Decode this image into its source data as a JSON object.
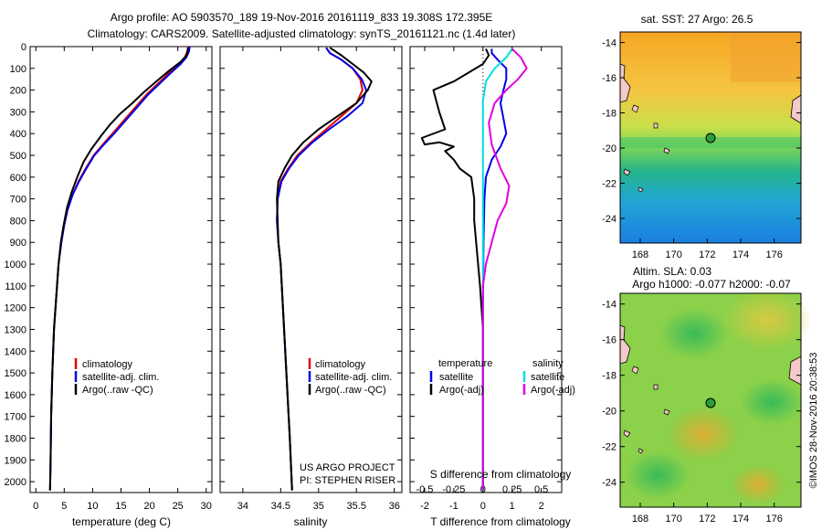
{
  "title_line1": "Argo profile: AO 5903570_189 19-Nov-2016 20161119_833 19.308S 172.395E",
  "title_line2": "Climatology: CARS2009. Satellite-adjusted climatology: synTS_20161121.nc (1.4d later)",
  "credit": "©IMOS 28-Nov-2016 20:38:53",
  "project_line1": "US ARGO PROJECT",
  "project_line2": "PI: STEPHEN RISER",
  "colors": {
    "climatology": "#e00000",
    "satellite": "#0000e6",
    "argo": "#000000",
    "sat_salinity": "#00e0e0",
    "argo_salinity": "#e000e0"
  },
  "depth_axis": {
    "ylim": [
      0,
      2050
    ],
    "ticks": [
      "0",
      "100",
      "200",
      "300",
      "400",
      "500",
      "600",
      "700",
      "800",
      "900",
      "1000",
      "1100",
      "1200",
      "1300",
      "1400",
      "1500",
      "1600",
      "1700",
      "1800",
      "1900",
      "2000"
    ]
  },
  "legend_profile": [
    "climatology",
    "satellite-adj. clim.",
    "Argo(..raw -QC)"
  ],
  "legend_diff": {
    "temp_header": "temperature",
    "sal_header": "salinity",
    "sat_label": "satellite",
    "argo_label": "Argo(-adj)"
  },
  "sst_map": {
    "title": "sat. SST: 27 Argo: 26.5",
    "xticks": [
      "168",
      "170",
      "172",
      "174",
      "176"
    ],
    "yticks": [
      "-14",
      "-16",
      "-18",
      "-20",
      "-22",
      "-24"
    ]
  },
  "sla_map": {
    "title1": "Altim. SLA: 0.03",
    "title2": "Argo h1000: -0.077 h2000: -0.07",
    "xticks": [
      "168",
      "170",
      "172",
      "174",
      "176"
    ],
    "yticks": [
      "-14",
      "-16",
      "-18",
      "-20",
      "-22",
      "-24"
    ]
  },
  "chart_data": [
    {
      "type": "line",
      "xlabel": "temperature (deg C)",
      "xlim": [
        -1,
        31
      ],
      "xticks": [
        "0",
        "5",
        "10",
        "15",
        "20",
        "25",
        "30"
      ],
      "ylabel": "",
      "ylim": [
        2050,
        0
      ],
      "series": [
        {
          "name": "climatology",
          "color_key": "climatology",
          "points": [
            [
              26.8,
              0
            ],
            [
              26.7,
              20
            ],
            [
              26.2,
              50
            ],
            [
              25.2,
              80
            ],
            [
              23.5,
              120
            ],
            [
              21.5,
              170
            ],
            [
              19.5,
              220
            ],
            [
              17.5,
              280
            ],
            [
              15.5,
              340
            ],
            [
              13.5,
              400
            ],
            [
              11.8,
              450
            ],
            [
              10.2,
              500
            ],
            [
              8.8,
              560
            ],
            [
              7.5,
              620
            ],
            [
              6.5,
              680
            ],
            [
              5.6,
              750
            ],
            [
              5.0,
              820
            ],
            [
              4.5,
              900
            ],
            [
              4.0,
              1000
            ],
            [
              3.6,
              1150
            ],
            [
              3.2,
              1300
            ],
            [
              2.9,
              1500
            ],
            [
              2.7,
              1700
            ],
            [
              2.6,
              1900
            ],
            [
              2.5,
              2040
            ]
          ]
        },
        {
          "name": "satellite-adj. clim.",
          "color_key": "satellite",
          "points": [
            [
              27.1,
              0
            ],
            [
              27.0,
              20
            ],
            [
              26.5,
              50
            ],
            [
              25.5,
              80
            ],
            [
              23.8,
              120
            ],
            [
              21.8,
              170
            ],
            [
              19.8,
              220
            ],
            [
              17.8,
              280
            ],
            [
              15.8,
              340
            ],
            [
              13.8,
              400
            ],
            [
              12.0,
              450
            ],
            [
              10.3,
              500
            ],
            [
              8.9,
              560
            ],
            [
              7.6,
              620
            ],
            [
              6.5,
              680
            ],
            [
              5.6,
              750
            ],
            [
              5.0,
              820
            ],
            [
              4.5,
              900
            ],
            [
              4.0,
              1000
            ],
            [
              3.6,
              1150
            ],
            [
              3.2,
              1300
            ],
            [
              2.9,
              1500
            ],
            [
              2.7,
              1700
            ],
            [
              2.6,
              1900
            ],
            [
              2.5,
              2040
            ]
          ]
        },
        {
          "name": "Argo(..raw -QC)",
          "color_key": "argo",
          "points": [
            [
              26.8,
              5
            ],
            [
              26.7,
              20
            ],
            [
              26.6,
              40
            ],
            [
              25.5,
              70
            ],
            [
              23.5,
              110
            ],
            [
              21.2,
              160
            ],
            [
              19.0,
              210
            ],
            [
              17.0,
              260
            ],
            [
              14.8,
              310
            ],
            [
              13.0,
              360
            ],
            [
              11.5,
              410
            ],
            [
              9.8,
              470
            ],
            [
              8.4,
              530
            ],
            [
              7.3,
              600
            ],
            [
              6.3,
              670
            ],
            [
              5.5,
              740
            ],
            [
              4.9,
              820
            ],
            [
              4.4,
              900
            ],
            [
              4.0,
              1000
            ],
            [
              3.6,
              1150
            ],
            [
              3.2,
              1300
            ],
            [
              2.9,
              1500
            ],
            [
              2.7,
              1700
            ],
            [
              2.6,
              1900
            ],
            [
              2.5,
              2040
            ]
          ]
        }
      ]
    },
    {
      "type": "line",
      "xlabel": "salinity",
      "xlim": [
        33.7,
        36.1
      ],
      "xticks": [
        "34",
        "34.5",
        "35",
        "35.5",
        "36"
      ],
      "ylim": [
        2050,
        0
      ],
      "series": [
        {
          "name": "climatology",
          "color_key": "climatology",
          "points": [
            [
              35.1,
              5
            ],
            [
              35.15,
              30
            ],
            [
              35.3,
              60
            ],
            [
              35.45,
              100
            ],
            [
              35.55,
              150
            ],
            [
              35.58,
              200
            ],
            [
              35.5,
              260
            ],
            [
              35.3,
              320
            ],
            [
              35.1,
              380
            ],
            [
              34.9,
              440
            ],
            [
              34.72,
              500
            ],
            [
              34.6,
              560
            ],
            [
              34.5,
              620
            ],
            [
              34.46,
              700
            ],
            [
              34.45,
              800
            ],
            [
              34.47,
              900
            ],
            [
              34.5,
              1000
            ],
            [
              34.53,
              1200
            ],
            [
              34.56,
              1400
            ],
            [
              34.59,
              1600
            ],
            [
              34.62,
              1800
            ],
            [
              34.65,
              2040
            ]
          ]
        },
        {
          "name": "satellite-adj. clim.",
          "color_key": "satellite",
          "points": [
            [
              35.1,
              5
            ],
            [
              35.15,
              30
            ],
            [
              35.3,
              60
            ],
            [
              35.45,
              100
            ],
            [
              35.57,
              150
            ],
            [
              35.63,
              200
            ],
            [
              35.58,
              260
            ],
            [
              35.38,
              320
            ],
            [
              35.14,
              380
            ],
            [
              34.92,
              440
            ],
            [
              34.74,
              500
            ],
            [
              34.61,
              560
            ],
            [
              34.51,
              620
            ],
            [
              34.46,
              700
            ],
            [
              34.45,
              800
            ],
            [
              34.47,
              900
            ],
            [
              34.5,
              1000
            ],
            [
              34.53,
              1200
            ],
            [
              34.56,
              1400
            ],
            [
              34.59,
              1600
            ],
            [
              34.62,
              1800
            ],
            [
              34.65,
              2040
            ]
          ]
        },
        {
          "name": "Argo(..raw -QC)",
          "color_key": "argo",
          "points": [
            [
              35.15,
              5
            ],
            [
              35.3,
              40
            ],
            [
              35.45,
              80
            ],
            [
              35.6,
              120
            ],
            [
              35.7,
              160
            ],
            [
              35.65,
              200
            ],
            [
              35.5,
              260
            ],
            [
              35.25,
              320
            ],
            [
              35.0,
              380
            ],
            [
              34.8,
              440
            ],
            [
              34.65,
              500
            ],
            [
              34.55,
              560
            ],
            [
              34.47,
              620
            ],
            [
              34.45,
              700
            ],
            [
              34.46,
              800
            ],
            [
              34.47,
              900
            ],
            [
              34.5,
              1000
            ],
            [
              34.53,
              1200
            ],
            [
              34.56,
              1400
            ],
            [
              34.59,
              1600
            ],
            [
              34.62,
              1800
            ],
            [
              34.65,
              2040
            ]
          ]
        }
      ]
    },
    {
      "type": "line",
      "xlabel": "T difference from climatology",
      "xlabel_top": "S difference from climatology",
      "xlim": [
        -2.5,
        2.7
      ],
      "xticks": [
        "-2",
        "-1",
        "0",
        "1",
        "2"
      ],
      "xticks_top": [
        "-0.5",
        "-0.25",
        "0",
        "0.25",
        "0.5"
      ],
      "ylim": [
        2050,
        0
      ],
      "series": [
        {
          "name": "temperature satellite",
          "color_key": "satellite",
          "points": [
            [
              0.3,
              10
            ],
            [
              0.3,
              30
            ],
            [
              0.5,
              60
            ],
            [
              0.8,
              100
            ],
            [
              0.8,
              150
            ],
            [
              0.7,
              200
            ],
            [
              0.6,
              260
            ],
            [
              0.7,
              330
            ],
            [
              0.8,
              400
            ],
            [
              0.6,
              460
            ],
            [
              0.3,
              520
            ],
            [
              0.1,
              600
            ],
            [
              0.05,
              700
            ],
            [
              0.02,
              900
            ],
            [
              0.0,
              1200
            ],
            [
              0.0,
              2040
            ]
          ]
        },
        {
          "name": "temperature Argo(-adj)",
          "color_key": "argo",
          "points": [
            [
              0.1,
              10
            ],
            [
              0.2,
              40
            ],
            [
              0.0,
              80
            ],
            [
              -0.5,
              120
            ],
            [
              -1.0,
              160
            ],
            [
              -1.7,
              200
            ],
            [
              -1.5,
              300
            ],
            [
              -1.3,
              380
            ],
            [
              -2.1,
              420
            ],
            [
              -2.0,
              450
            ],
            [
              -1.5,
              440
            ],
            [
              -1.0,
              460
            ],
            [
              -1.3,
              480
            ],
            [
              -1.0,
              520
            ],
            [
              -0.8,
              560
            ],
            [
              -0.4,
              600
            ],
            [
              -0.3,
              700
            ],
            [
              -0.3,
              800
            ],
            [
              -0.2,
              950
            ],
            [
              -0.1,
              1100
            ],
            [
              0.0,
              1300
            ],
            [
              0.0,
              2040
            ]
          ]
        },
        {
          "name": "salinity satellite",
          "color_key": "sat_salinity",
          "points": [
            [
              1.0,
              10
            ],
            [
              0.8,
              50
            ],
            [
              0.4,
              100
            ],
            [
              0.1,
              160
            ],
            [
              0.0,
              250
            ],
            [
              0.0,
              400
            ],
            [
              0.0,
              700
            ],
            [
              0.0,
              1200
            ],
            [
              0.0,
              2040
            ]
          ]
        },
        {
          "name": "salinity Argo(-adj)",
          "color_key": "argo_salinity",
          "points": [
            [
              1.0,
              10
            ],
            [
              1.3,
              50
            ],
            [
              1.5,
              100
            ],
            [
              1.2,
              150
            ],
            [
              0.8,
              200
            ],
            [
              0.4,
              260
            ],
            [
              0.2,
              350
            ],
            [
              0.3,
              450
            ],
            [
              0.6,
              560
            ],
            [
              0.9,
              640
            ],
            [
              0.8,
              720
            ],
            [
              0.5,
              800
            ],
            [
              0.3,
              900
            ],
            [
              0.1,
              1000
            ],
            [
              0.0,
              1100
            ],
            [
              0.0,
              2040
            ]
          ]
        }
      ]
    }
  ]
}
